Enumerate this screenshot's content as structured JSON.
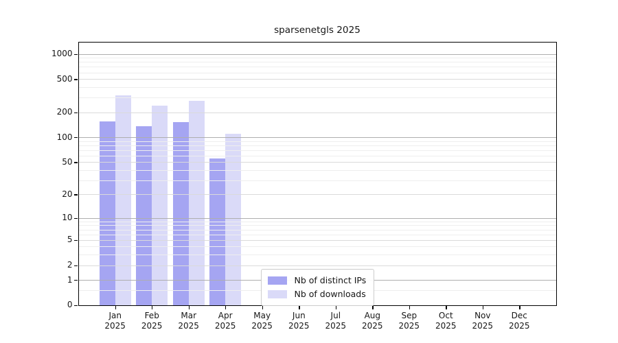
{
  "title": "sparsenetgls 2025",
  "chart_data": {
    "type": "bar",
    "title": "sparsenetgls 2025",
    "x_categories": [
      "Jan",
      "Feb",
      "Mar",
      "Apr",
      "May",
      "Jun",
      "Jul",
      "Aug",
      "Sep",
      "Oct",
      "Nov",
      "Dec"
    ],
    "x_sublabel": "2025",
    "series": [
      {
        "name": "Nb of distinct IPs",
        "color": "#a5a5f2",
        "values": [
          155,
          136,
          152,
          55,
          null,
          null,
          null,
          null,
          null,
          null,
          null,
          null
        ]
      },
      {
        "name": "Nb of downloads",
        "color": "#dadaf8",
        "values": [
          322,
          238,
          276,
          110,
          null,
          null,
          null,
          null,
          null,
          null,
          null,
          null
        ]
      }
    ],
    "y_axis": {
      "scale": "symlog",
      "ticks": [
        1000,
        500,
        200,
        100,
        50,
        20,
        10,
        5,
        2,
        1,
        0
      ],
      "emphasized_gridlines": [
        1,
        10,
        100,
        1000
      ],
      "minor_gridlines": [
        0.5,
        3,
        4,
        6,
        7,
        8,
        9,
        30,
        40,
        60,
        70,
        80,
        90,
        300,
        400,
        600,
        700,
        800,
        900
      ],
      "range_top": 1350
    },
    "grid": "horizontal, drawn over bars",
    "legend_position": "inside bottom-center",
    "colors": {
      "distinct_ips_bar": "#a5a5f2",
      "downloads_bar": "#dadaf8",
      "gridline_major": "#dadada",
      "gridline_power10": "#aeaeae",
      "gridline_minor": "#eeeeee",
      "spine": "#000000",
      "text": "#161616",
      "background": "#ffffff"
    }
  }
}
